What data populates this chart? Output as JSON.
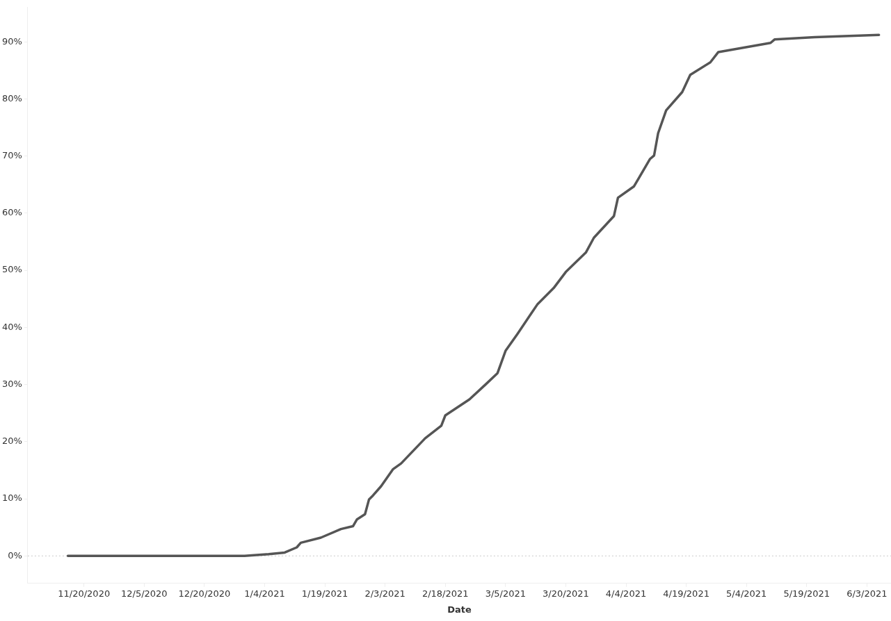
{
  "chart_data": {
    "type": "line",
    "xlabel": "Date",
    "x": [
      "2020-11-16",
      "2020-12-30",
      "2021-01-05",
      "2021-01-09",
      "2021-01-12",
      "2021-01-13",
      "2021-01-18",
      "2021-01-23",
      "2021-01-26",
      "2021-01-27",
      "2021-01-29",
      "2021-01-30",
      "2021-01-31",
      "2021-02-02",
      "2021-02-05",
      "2021-02-07",
      "2021-02-13",
      "2021-02-17",
      "2021-02-18",
      "2021-02-24",
      "2021-02-28",
      "2021-03-03",
      "2021-03-05",
      "2021-03-08",
      "2021-03-13",
      "2021-03-17",
      "2021-03-20",
      "2021-03-25",
      "2021-03-27",
      "2021-04-01",
      "2021-04-02",
      "2021-04-06",
      "2021-04-10",
      "2021-04-11",
      "2021-04-12",
      "2021-04-14",
      "2021-04-18",
      "2021-04-20",
      "2021-04-25",
      "2021-04-27",
      "2021-05-10",
      "2021-05-11",
      "2021-05-21",
      "2021-06-06"
    ],
    "series": [
      {
        "color": "#555555",
        "values": [
          0,
          0,
          0.3,
          0.6,
          1.5,
          2.3,
          3.2,
          4.7,
          5.2,
          6.4,
          7.3,
          9.9,
          10.6,
          12.2,
          15.2,
          16.2,
          20.6,
          22.8,
          24.6,
          27.4,
          30.0,
          32.0,
          35.9,
          38.9,
          44.1,
          46.9,
          49.7,
          53.1,
          55.7,
          59.5,
          62.7,
          64.7,
          69.5,
          70.1,
          74.0,
          78.0,
          81.2,
          84.2,
          86.4,
          88.2,
          89.8,
          90.4,
          90.8,
          91.2
        ]
      }
    ],
    "xlim": [
      "2020-11-06",
      "2021-06-09"
    ],
    "xticks": [
      {
        "value": "2020-11-20",
        "label": "11/20/2020"
      },
      {
        "value": "2020-12-05",
        "label": "12/5/2020"
      },
      {
        "value": "2020-12-20",
        "label": "12/20/2020"
      },
      {
        "value": "2021-01-04",
        "label": "1/4/2021"
      },
      {
        "value": "2021-01-19",
        "label": "1/19/2021"
      },
      {
        "value": "2021-02-03",
        "label": "2/3/2021"
      },
      {
        "value": "2021-02-18",
        "label": "2/18/2021"
      },
      {
        "value": "2021-03-05",
        "label": "3/5/2021"
      },
      {
        "value": "2021-03-20",
        "label": "3/20/2021"
      },
      {
        "value": "2021-04-04",
        "label": "4/4/2021"
      },
      {
        "value": "2021-04-19",
        "label": "4/19/2021"
      },
      {
        "value": "2021-05-04",
        "label": "5/4/2021"
      },
      {
        "value": "2021-05-19",
        "label": "5/19/2021"
      },
      {
        "value": "2021-06-03",
        "label": "6/3/2021"
      }
    ],
    "ylim": [
      -4.8,
      96
    ],
    "yticks": [
      {
        "value": 0,
        "label": "0%"
      },
      {
        "value": 10,
        "label": "10%"
      },
      {
        "value": 20,
        "label": "20%"
      },
      {
        "value": 30,
        "label": "30%"
      },
      {
        "value": 40,
        "label": "40%"
      },
      {
        "value": 50,
        "label": "50%"
      },
      {
        "value": 60,
        "label": "60%"
      },
      {
        "value": 70,
        "label": "70%"
      },
      {
        "value": 80,
        "label": "80%"
      },
      {
        "value": 90,
        "label": "90%"
      }
    ],
    "ref_lines": [
      {
        "axis": "y",
        "value": 0,
        "color": "#c8c8c8",
        "line_style": "dotted"
      }
    ],
    "grid": false,
    "legend": false,
    "marker": "none",
    "line_style": "solid"
  }
}
